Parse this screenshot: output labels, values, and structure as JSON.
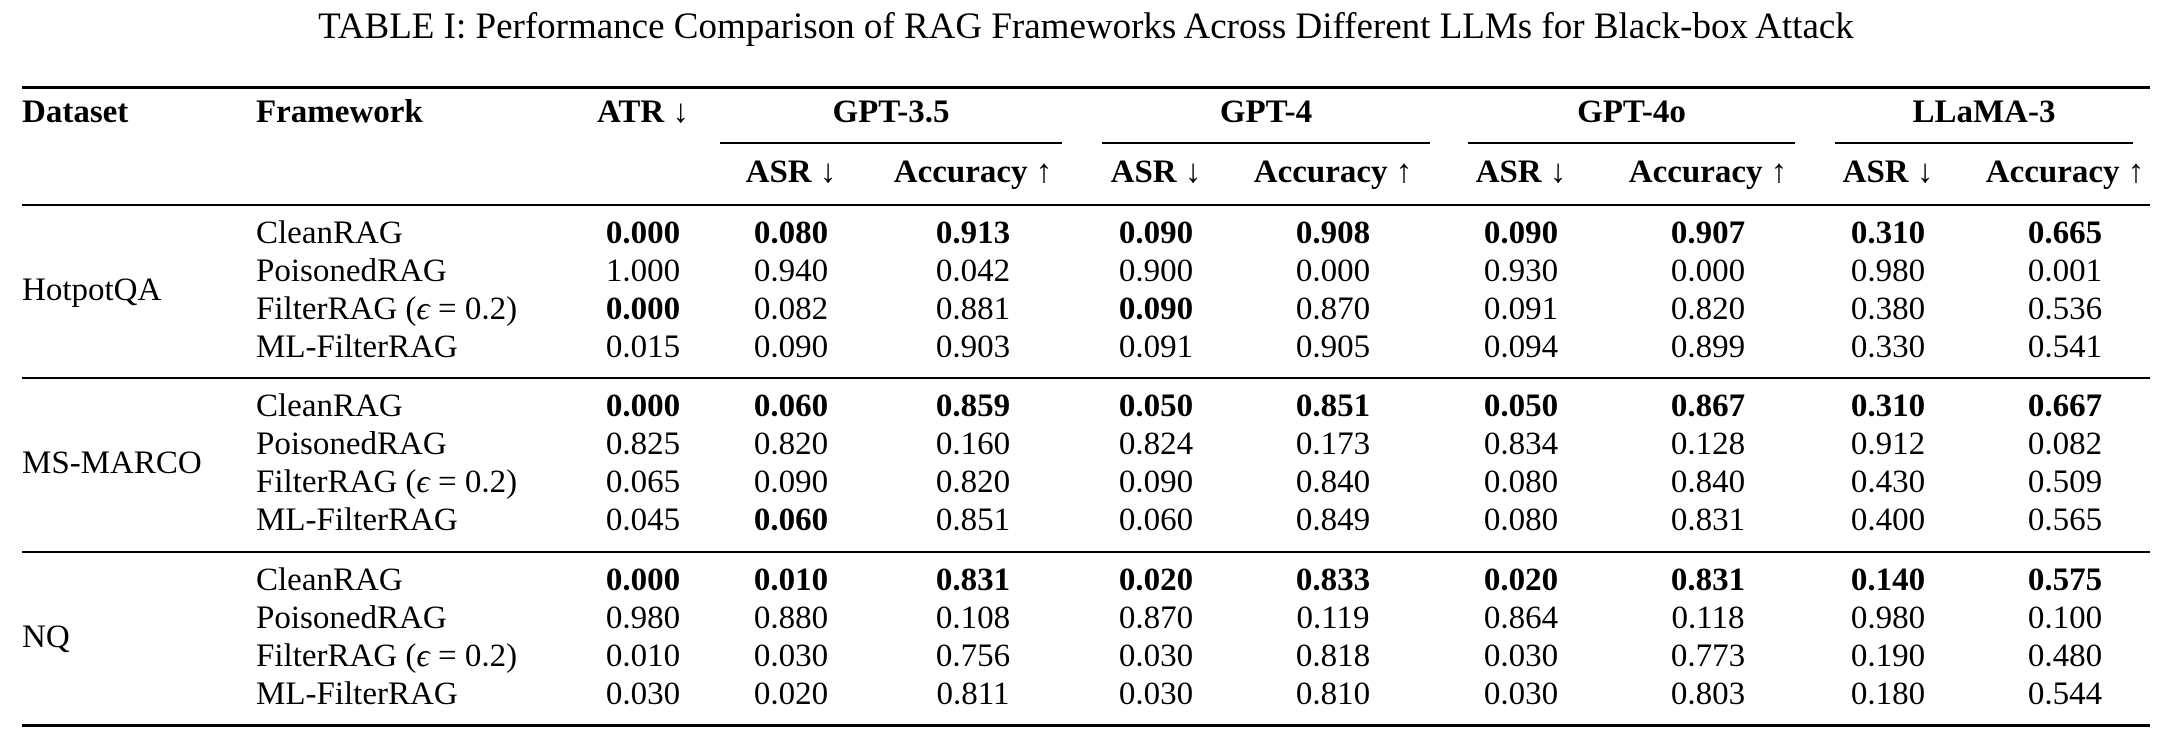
{
  "caption": "TABLE I: Performance Comparison of RAG Frameworks Across Different LLMs for Black-box Attack",
  "headers": {
    "dataset": "Dataset",
    "framework": "Framework",
    "atr": "ATR ↓",
    "models": [
      "GPT-3.5",
      "GPT-4",
      "GPT-4o",
      "LLaMA-3"
    ],
    "asr": "ASR ↓",
    "accuracy": "Accuracy ↑"
  },
  "filter_label": {
    "prefix": "FilterRAG (",
    "epsilon": "ϵ",
    "suffix": " = 0.2)"
  },
  "groups": [
    {
      "dataset": "HotpotQA",
      "rows": [
        {
          "framework": "CleanRAG",
          "cells": [
            [
              "0.000",
              true
            ],
            [
              "0.080",
              true
            ],
            [
              "0.913",
              true
            ],
            [
              "0.090",
              true
            ],
            [
              "0.908",
              true
            ],
            [
              "0.090",
              true
            ],
            [
              "0.907",
              true
            ],
            [
              "0.310",
              true
            ],
            [
              "0.665",
              true
            ]
          ]
        },
        {
          "framework": "PoisonedRAG",
          "cells": [
            [
              "1.000",
              false
            ],
            [
              "0.940",
              false
            ],
            [
              "0.042",
              false
            ],
            [
              "0.900",
              false
            ],
            [
              "0.000",
              false
            ],
            [
              "0.930",
              false
            ],
            [
              "0.000",
              false
            ],
            [
              "0.980",
              false
            ],
            [
              "0.001",
              false
            ]
          ]
        },
        {
          "framework": "FilterRAG",
          "cells": [
            [
              "0.000",
              true
            ],
            [
              "0.082",
              false
            ],
            [
              "0.881",
              false
            ],
            [
              "0.090",
              true
            ],
            [
              "0.870",
              false
            ],
            [
              "0.091",
              false
            ],
            [
              "0.820",
              false
            ],
            [
              "0.380",
              false
            ],
            [
              "0.536",
              false
            ]
          ]
        },
        {
          "framework": "ML-FilterRAG",
          "cells": [
            [
              "0.015",
              false
            ],
            [
              "0.090",
              false
            ],
            [
              "0.903",
              false
            ],
            [
              "0.091",
              false
            ],
            [
              "0.905",
              false
            ],
            [
              "0.094",
              false
            ],
            [
              "0.899",
              false
            ],
            [
              "0.330",
              false
            ],
            [
              "0.541",
              false
            ]
          ]
        }
      ]
    },
    {
      "dataset": "MS-MARCO",
      "rows": [
        {
          "framework": "CleanRAG",
          "cells": [
            [
              "0.000",
              true
            ],
            [
              "0.060",
              true
            ],
            [
              "0.859",
              true
            ],
            [
              "0.050",
              true
            ],
            [
              "0.851",
              true
            ],
            [
              "0.050",
              true
            ],
            [
              "0.867",
              true
            ],
            [
              "0.310",
              true
            ],
            [
              "0.667",
              true
            ]
          ]
        },
        {
          "framework": "PoisonedRAG",
          "cells": [
            [
              "0.825",
              false
            ],
            [
              "0.820",
              false
            ],
            [
              "0.160",
              false
            ],
            [
              "0.824",
              false
            ],
            [
              "0.173",
              false
            ],
            [
              "0.834",
              false
            ],
            [
              "0.128",
              false
            ],
            [
              "0.912",
              false
            ],
            [
              "0.082",
              false
            ]
          ]
        },
        {
          "framework": "FilterRAG",
          "cells": [
            [
              "0.065",
              false
            ],
            [
              "0.090",
              false
            ],
            [
              "0.820",
              false
            ],
            [
              "0.090",
              false
            ],
            [
              "0.840",
              false
            ],
            [
              "0.080",
              false
            ],
            [
              "0.840",
              false
            ],
            [
              "0.430",
              false
            ],
            [
              "0.509",
              false
            ]
          ]
        },
        {
          "framework": "ML-FilterRAG",
          "cells": [
            [
              "0.045",
              false
            ],
            [
              "0.060",
              true
            ],
            [
              "0.851",
              false
            ],
            [
              "0.060",
              false
            ],
            [
              "0.849",
              false
            ],
            [
              "0.080",
              false
            ],
            [
              "0.831",
              false
            ],
            [
              "0.400",
              false
            ],
            [
              "0.565",
              false
            ]
          ]
        }
      ]
    },
    {
      "dataset": "NQ",
      "rows": [
        {
          "framework": "CleanRAG",
          "cells": [
            [
              "0.000",
              true
            ],
            [
              "0.010",
              true
            ],
            [
              "0.831",
              true
            ],
            [
              "0.020",
              true
            ],
            [
              "0.833",
              true
            ],
            [
              "0.020",
              true
            ],
            [
              "0.831",
              true
            ],
            [
              "0.140",
              true
            ],
            [
              "0.575",
              true
            ]
          ]
        },
        {
          "framework": "PoisonedRAG",
          "cells": [
            [
              "0.980",
              false
            ],
            [
              "0.880",
              false
            ],
            [
              "0.108",
              false
            ],
            [
              "0.870",
              false
            ],
            [
              "0.119",
              false
            ],
            [
              "0.864",
              false
            ],
            [
              "0.118",
              false
            ],
            [
              "0.980",
              false
            ],
            [
              "0.100",
              false
            ]
          ]
        },
        {
          "framework": "FilterRAG",
          "cells": [
            [
              "0.010",
              false
            ],
            [
              "0.030",
              false
            ],
            [
              "0.756",
              false
            ],
            [
              "0.030",
              false
            ],
            [
              "0.818",
              false
            ],
            [
              "0.030",
              false
            ],
            [
              "0.773",
              false
            ],
            [
              "0.190",
              false
            ],
            [
              "0.480",
              false
            ]
          ]
        },
        {
          "framework": "ML-FilterRAG",
          "cells": [
            [
              "0.030",
              false
            ],
            [
              "0.020",
              false
            ],
            [
              "0.811",
              false
            ],
            [
              "0.030",
              false
            ],
            [
              "0.810",
              false
            ],
            [
              "0.030",
              false
            ],
            [
              "0.803",
              false
            ],
            [
              "0.180",
              false
            ],
            [
              "0.544",
              false
            ]
          ]
        }
      ]
    }
  ]
}
